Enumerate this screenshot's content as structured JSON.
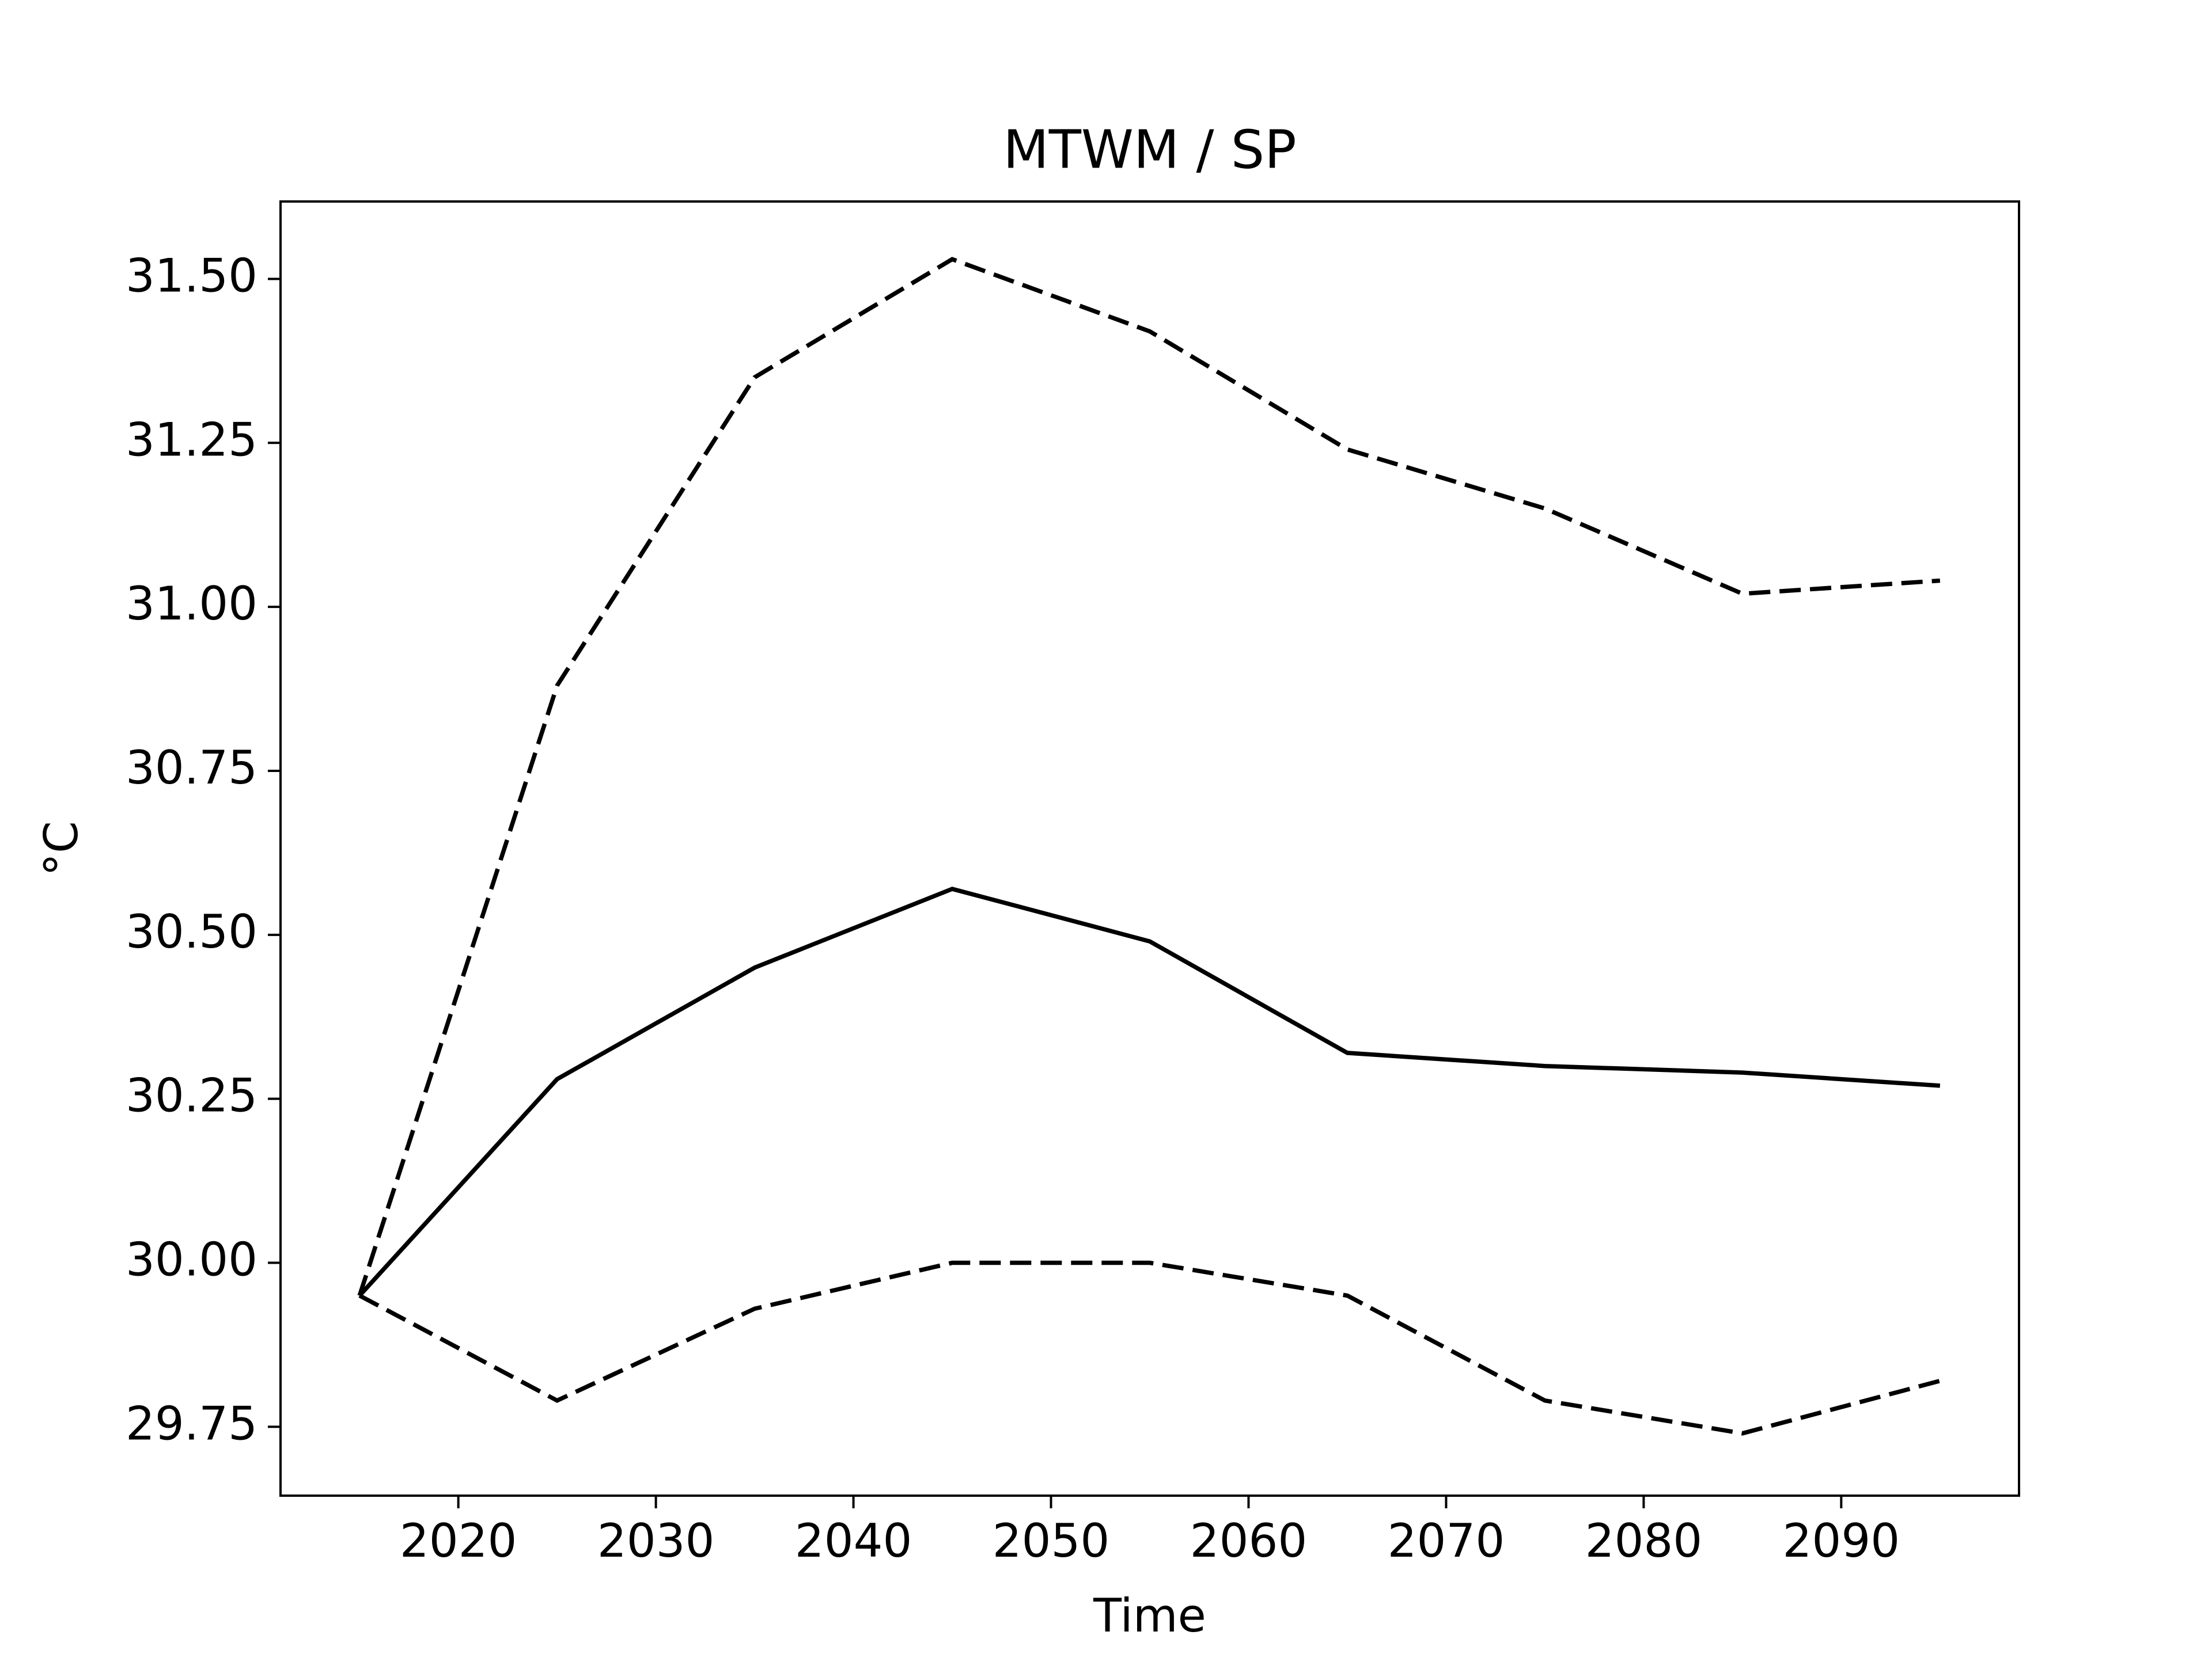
{
  "chart_data": {
    "type": "line",
    "title": "MTWM / SP",
    "xlabel": "Time",
    "ylabel": "°C",
    "x": [
      2015,
      2025,
      2035,
      2045,
      2055,
      2065,
      2075,
      2085,
      2095
    ],
    "series": [
      {
        "color": "#000000",
        "linestyle": "dashed",
        "values": [
          29.95,
          30.88,
          31.35,
          31.53,
          31.42,
          31.24,
          31.15,
          31.02,
          31.04
        ]
      },
      {
        "color": "#000000",
        "linestyle": "solid",
        "values": [
          29.95,
          30.28,
          30.45,
          30.57,
          30.49,
          30.32,
          30.3,
          30.29,
          30.27
        ]
      },
      {
        "color": "#000000",
        "linestyle": "dashed",
        "values": [
          29.95,
          29.79,
          29.93,
          30.0,
          30.0,
          29.95,
          29.79,
          29.74,
          29.82
        ]
      }
    ],
    "xlim": [
      2011,
      2099
    ],
    "xticks": [
      2020,
      2030,
      2040,
      2050,
      2060,
      2070,
      2080,
      2090
    ],
    "ylim": [
      29.645,
      31.618
    ],
    "yticks": [
      {
        "value": 29.75,
        "label": "29.75"
      },
      {
        "value": 30.0,
        "label": "30.00"
      },
      30.25,
      {
        "value": 30.5,
        "label": "30.50"
      },
      30.75,
      {
        "value": 31.0,
        "label": "31.00"
      },
      31.25,
      {
        "value": 31.5,
        "label": "31.50"
      }
    ],
    "grid": false
  }
}
